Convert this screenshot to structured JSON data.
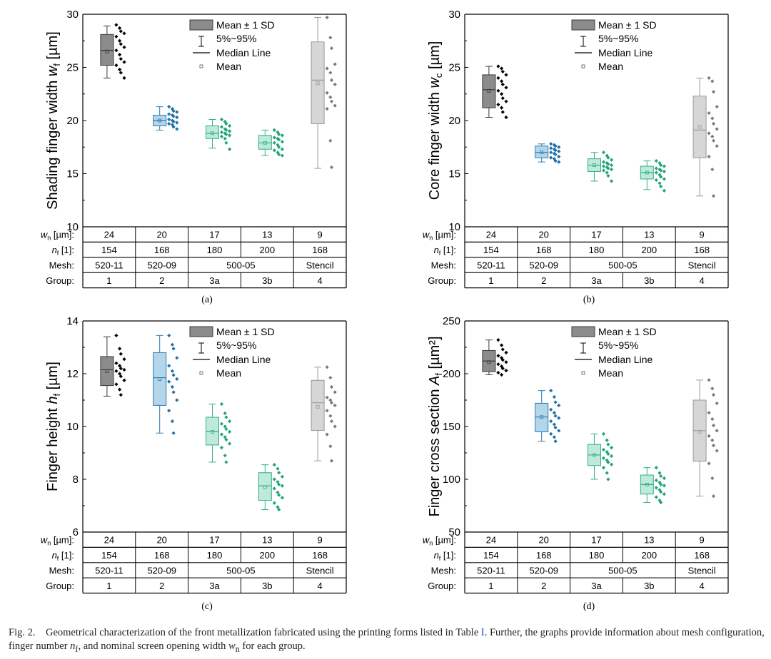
{
  "figure_caption": {
    "part1": "Fig. 2.    Geometrical characterization of the front metallization fabricated using the printing forms listed in Table ",
    "ref": "I",
    "part2": ". Further, the graphs provide information about mesh configuration, finger number ",
    "nf_sym": "n",
    "nf_sub": "f",
    "part3": ", and nominal screen opening width ",
    "wn_sym": "w",
    "wn_sub": "n",
    "part4": " for each group."
  },
  "legend": {
    "box": "Mean ± 1 SD",
    "whisker": "5%~95%",
    "median": "Median Line",
    "mean": "Mean"
  },
  "table": {
    "wn_label": "w",
    "wn_label_sub": "n",
    "wn_label_unit": " [µm]:",
    "nf_label": "n",
    "nf_label_sub": "f",
    "nf_label_unit": " [1]:",
    "mesh_label": "Mesh:",
    "group_label": "Group:",
    "wn": [
      "24",
      "20",
      "17",
      "13",
      "9"
    ],
    "nf": [
      "154",
      "168",
      "180",
      "200",
      "168"
    ],
    "mesh": [
      {
        "label": "520-11",
        "span": 1
      },
      {
        "label": "520-09",
        "span": 1
      },
      {
        "label": "500-05",
        "span": 2
      },
      {
        "label": "Stencil",
        "span": 1
      }
    ],
    "group": [
      "1",
      "2",
      "3a",
      "3b",
      "4"
    ]
  },
  "colors": {
    "group_fill": [
      "#8c8c8c",
      "#b4d6ea",
      "#bfe9da",
      "#bfe9da",
      "#d6d6d6"
    ],
    "group_line": [
      "#3a3a3a",
      "#2c7ab0",
      "#2fb08a",
      "#2fb08a",
      "#9a9a9a"
    ],
    "group_point": [
      "#000000",
      "#1f6fa8",
      "#21a37c",
      "#21a37c",
      "#7a7a7a"
    ]
  },
  "chart_data": [
    {
      "id": "a",
      "type": "box",
      "caption": "(a)",
      "ylabel": "Shading finger width ",
      "ylabel_sym": "w",
      "ylabel_sub": "f",
      "ylabel_unit": " [µm]",
      "ylim": [
        10,
        30
      ],
      "yticks": [
        10,
        15,
        20,
        25,
        30
      ],
      "categories": [
        "1",
        "2",
        "3a",
        "3b",
        "4"
      ],
      "series": [
        {
          "q1": 25.2,
          "q3": 28.1,
          "median": 26.6,
          "mean": 26.5,
          "p5": 24.0,
          "p95": 28.9,
          "points": [
            29.0,
            28.7,
            28.4,
            28.2,
            27.9,
            27.5,
            27.2,
            26.9,
            26.6,
            26.2,
            25.8,
            25.5,
            25.2,
            24.8,
            24.5,
            24.0
          ]
        },
        {
          "q1": 19.5,
          "q3": 20.5,
          "median": 20.0,
          "mean": 20.0,
          "p5": 19.1,
          "p95": 21.3,
          "points": [
            21.3,
            21.1,
            20.9,
            20.8,
            20.6,
            20.5,
            20.4,
            20.3,
            20.1,
            20.0,
            19.9,
            19.8,
            19.7,
            19.6,
            19.4,
            19.2
          ]
        },
        {
          "q1": 18.3,
          "q3": 19.5,
          "median": 18.8,
          "mean": 18.8,
          "p5": 17.4,
          "p95": 20.1,
          "points": [
            20.1,
            19.9,
            19.7,
            19.5,
            19.4,
            19.2,
            19.1,
            19.0,
            18.9,
            18.8,
            18.7,
            18.6,
            18.5,
            18.3,
            17.9,
            17.3
          ]
        },
        {
          "q1": 17.3,
          "q3": 18.6,
          "median": 17.9,
          "mean": 17.9,
          "p5": 16.7,
          "p95": 19.1,
          "points": [
            19.1,
            18.9,
            18.7,
            18.6,
            18.4,
            18.3,
            18.2,
            18.0,
            17.9,
            17.7,
            17.5,
            17.3,
            17.2,
            17.0,
            16.8,
            16.7
          ]
        },
        {
          "q1": 19.7,
          "q3": 27.4,
          "median": 23.8,
          "mean": 23.5,
          "p5": 15.5,
          "p95": 29.7,
          "points": [
            29.7,
            27.8,
            26.8,
            25.3,
            24.9,
            24.5,
            23.8,
            23.4,
            22.6,
            22.2,
            21.8,
            21.4,
            21.1,
            18.1,
            15.6
          ]
        }
      ]
    },
    {
      "id": "b",
      "type": "box",
      "caption": "(b)",
      "ylabel": "Core finger width ",
      "ylabel_sym": "w",
      "ylabel_sub": "c",
      "ylabel_unit": " [µm]",
      "ylim": [
        10,
        30
      ],
      "yticks": [
        10,
        15,
        20,
        25,
        30
      ],
      "categories": [
        "1",
        "2",
        "3a",
        "3b",
        "4"
      ],
      "series": [
        {
          "q1": 21.2,
          "q3": 24.3,
          "median": 22.9,
          "mean": 22.8,
          "p5": 20.3,
          "p95": 25.1,
          "points": [
            25.1,
            24.9,
            24.6,
            24.3,
            24.0,
            23.7,
            23.4,
            23.1,
            22.8,
            22.5,
            22.1,
            21.8,
            21.5,
            21.2,
            20.8,
            20.3
          ]
        },
        {
          "q1": 16.5,
          "q3": 17.6,
          "median": 17.0,
          "mean": 17.0,
          "p5": 16.1,
          "p95": 17.8,
          "points": [
            17.8,
            17.7,
            17.6,
            17.5,
            17.4,
            17.3,
            17.2,
            17.1,
            17.0,
            16.9,
            16.8,
            16.6,
            16.5,
            16.4,
            16.2,
            16.1
          ]
        },
        {
          "q1": 15.2,
          "q3": 16.4,
          "median": 15.8,
          "mean": 15.8,
          "p5": 14.3,
          "p95": 17.0,
          "points": [
            17.0,
            16.7,
            16.5,
            16.3,
            16.1,
            16.0,
            15.9,
            15.8,
            15.7,
            15.6,
            15.5,
            15.4,
            15.3,
            15.1,
            14.8,
            14.3
          ]
        },
        {
          "q1": 14.5,
          "q3": 15.7,
          "median": 15.1,
          "mean": 15.1,
          "p5": 13.5,
          "p95": 16.2,
          "points": [
            16.2,
            16.0,
            15.8,
            15.7,
            15.5,
            15.4,
            15.3,
            15.2,
            15.1,
            14.9,
            14.7,
            14.5,
            14.4,
            14.1,
            13.8,
            13.4
          ]
        },
        {
          "q1": 16.5,
          "q3": 22.3,
          "median": 19.1,
          "mean": 19.4,
          "p5": 12.9,
          "p95": 24.0,
          "points": [
            24.0,
            23.7,
            22.7,
            21.3,
            20.7,
            20.2,
            19.7,
            19.2,
            18.8,
            18.5,
            18.1,
            17.6,
            16.6,
            15.4,
            12.9
          ]
        }
      ]
    },
    {
      "id": "c",
      "type": "box",
      "caption": "(c)",
      "ylabel": "Finger height ",
      "ylabel_sym": "h",
      "ylabel_sub": "f",
      "ylabel_unit": " [µm]",
      "ylim": [
        6,
        14
      ],
      "yticks": [
        6,
        8,
        10,
        12,
        14
      ],
      "categories": [
        "1",
        "2",
        "3a",
        "3b",
        "4"
      ],
      "series": [
        {
          "q1": 11.55,
          "q3": 12.65,
          "median": 12.15,
          "mean": 12.1,
          "p5": 11.15,
          "p95": 13.4,
          "points": [
            13.45,
            12.95,
            12.75,
            12.55,
            12.4,
            12.3,
            12.2,
            12.15,
            12.1,
            12.0,
            11.9,
            11.75,
            11.6,
            11.4,
            11.2
          ]
        },
        {
          "q1": 10.8,
          "q3": 12.8,
          "median": 11.85,
          "mean": 11.8,
          "p5": 9.75,
          "p95": 13.45,
          "points": [
            13.45,
            13.1,
            12.95,
            12.6,
            12.3,
            12.1,
            11.95,
            11.8,
            11.7,
            11.5,
            11.3,
            11.0,
            10.6,
            10.2,
            9.75
          ]
        },
        {
          "q1": 9.3,
          "q3": 10.35,
          "median": 9.8,
          "mean": 9.8,
          "p5": 8.65,
          "p95": 10.85,
          "points": [
            10.85,
            10.5,
            10.35,
            10.2,
            10.1,
            10.0,
            9.9,
            9.8,
            9.7,
            9.6,
            9.5,
            9.35,
            9.2,
            8.9,
            8.65
          ]
        },
        {
          "q1": 7.2,
          "q3": 8.25,
          "median": 7.75,
          "mean": 7.7,
          "p5": 6.85,
          "p95": 8.55,
          "points": [
            8.55,
            8.4,
            8.25,
            8.1,
            8.0,
            7.9,
            7.8,
            7.75,
            7.65,
            7.5,
            7.4,
            7.3,
            7.1,
            6.95,
            6.85
          ]
        },
        {
          "q1": 9.85,
          "q3": 11.75,
          "median": 10.9,
          "mean": 10.75,
          "p5": 8.7,
          "p95": 12.25,
          "points": [
            12.25,
            11.85,
            11.5,
            11.3,
            11.1,
            11.0,
            10.9,
            10.8,
            10.6,
            10.4,
            10.2,
            10.0,
            9.7,
            9.25,
            8.7
          ]
        }
      ]
    },
    {
      "id": "d",
      "type": "box",
      "caption": "(d)",
      "ylabel": "Finger cross section ",
      "ylabel_sym": "A",
      "ylabel_sub": "f",
      "ylabel_unit": " [µm²]",
      "ylim": [
        50,
        250
      ],
      "yticks": [
        50,
        100,
        150,
        200,
        250
      ],
      "categories": [
        "1",
        "2",
        "3a",
        "3b",
        "4"
      ],
      "series": [
        {
          "q1": 202,
          "q3": 222,
          "median": 212,
          "mean": 211,
          "p5": 199,
          "p95": 232,
          "points": [
            232,
            227,
            223,
            220,
            217,
            215,
            213,
            211,
            209,
            207,
            205,
            203,
            201,
            199
          ]
        },
        {
          "q1": 145,
          "q3": 172,
          "median": 159,
          "mean": 159,
          "p5": 136,
          "p95": 184,
          "points": [
            184,
            178,
            173,
            170,
            166,
            163,
            160,
            158,
            155,
            152,
            149,
            146,
            143,
            140,
            136
          ]
        },
        {
          "q1": 113,
          "q3": 133,
          "median": 123,
          "mean": 123,
          "p5": 100,
          "p95": 143,
          "points": [
            143,
            137,
            133,
            130,
            128,
            126,
            124,
            122,
            120,
            118,
            116,
            114,
            111,
            106,
            100
          ]
        },
        {
          "q1": 86,
          "q3": 104,
          "median": 95,
          "mean": 95,
          "p5": 78,
          "p95": 111,
          "points": [
            111,
            106,
            103,
            101,
            99,
            97,
            95,
            94,
            92,
            90,
            88,
            86,
            83,
            80,
            78
          ]
        },
        {
          "q1": 117,
          "q3": 175,
          "median": 146,
          "mean": 145,
          "p5": 84,
          "p95": 194,
          "points": [
            194,
            186,
            180,
            172,
            163,
            157,
            151,
            146,
            141,
            137,
            132,
            127,
            115,
            101,
            84
          ]
        }
      ]
    }
  ]
}
